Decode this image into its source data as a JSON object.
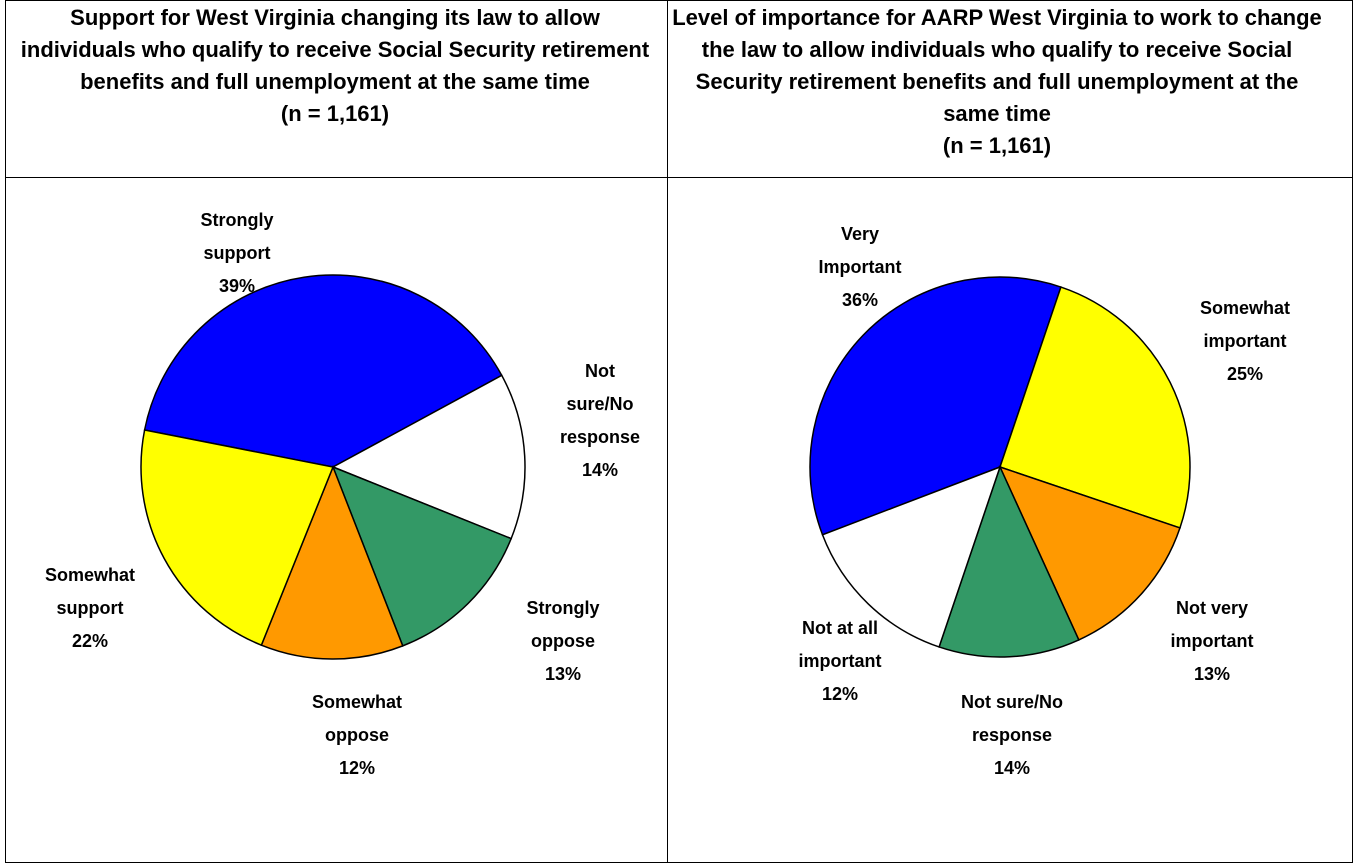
{
  "chart_data": [
    {
      "type": "pie",
      "title": "Support for West Virginia changing its law to allow individuals who qualify to receive Social Security retirement benefits and full unemployment at the same time",
      "subtitle": "(n = 1,161)",
      "categories": [
        "Strongly support",
        "Not sure/No response",
        "Strongly oppose",
        "Somewhat oppose",
        "Somewhat support"
      ],
      "values": [
        39,
        14,
        13,
        12,
        22
      ],
      "value_labels": [
        "39%",
        "14%",
        "13%",
        "12%",
        "22%"
      ],
      "colors": [
        "#0000ff",
        "#ffffff",
        "#339966",
        "#ff9900",
        "#ffff00"
      ]
    },
    {
      "type": "pie",
      "title": "Level of importance for AARP West Virginia to work to change the law to allow individuals who qualify to receive Social Security retirement benefits and full unemployment at the same time",
      "subtitle": "(n = 1,161)",
      "categories": [
        "Very Important",
        "Somewhat important",
        "Not very important",
        "Not at all important",
        "Not sure/No response"
      ],
      "values": [
        36,
        25,
        13,
        12,
        14
      ],
      "value_labels": [
        "36%",
        "25%",
        "13%",
        "12%",
        "14%"
      ],
      "colors": [
        "#0000ff",
        "#ffff00",
        "#ff9900",
        "#339966",
        "#ffffff"
      ]
    }
  ]
}
